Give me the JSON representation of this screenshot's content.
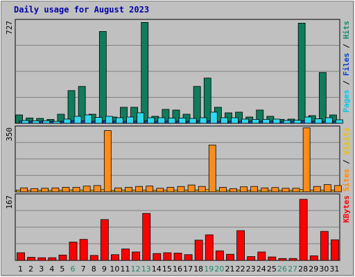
{
  "chart_data": {
    "type": "bar",
    "title": "Daily usage for August 2023",
    "categories": [
      "1",
      "2",
      "3",
      "4",
      "5",
      "6",
      "7",
      "8",
      "9",
      "10",
      "11",
      "12",
      "13",
      "14",
      "15",
      "16",
      "17",
      "18",
      "19",
      "20",
      "21",
      "22",
      "23",
      "24",
      "25",
      "26",
      "27",
      "28",
      "29",
      "30",
      "31"
    ],
    "weekend_days": [
      "6",
      "12",
      "13",
      "19",
      "20",
      "26",
      "27"
    ],
    "grid": true,
    "panels": [
      {
        "id": "hits_files_pages",
        "ymax_label": "727",
        "ymax": 727,
        "right_label": [
          {
            "text": "Pages",
            "color": "#00c8e8"
          },
          {
            "text": " / ",
            "color": "#000000"
          },
          {
            "text": "Files",
            "color": "#0044cc"
          },
          {
            "text": " / ",
            "color": "#000000"
          },
          {
            "text": "Hits",
            "color": "#1a8a6e"
          }
        ],
        "series": [
          {
            "name": "Hits",
            "color": "#107c5c",
            "values": [
              60,
              38,
              35,
              28,
              65,
              235,
              265,
              65,
              660,
              45,
              115,
              115,
              725,
              50,
              100,
              95,
              65,
              265,
              325,
              115,
              75,
              80,
              45,
              95,
              50,
              28,
              30,
              720,
              55,
              365,
              60
            ]
          },
          {
            "name": "Files",
            "color": "#1050d0",
            "values": [
              15,
              15,
              15,
              15,
              15,
              18,
              18,
              15,
              18,
              15,
              15,
              15,
              18,
              15,
              15,
              15,
              15,
              18,
              18,
              15,
              15,
              15,
              15,
              15,
              15,
              15,
              15,
              18,
              15,
              15,
              15
            ]
          },
          {
            "name": "Pages",
            "color": "#30d8f0",
            "values": [
              20,
              18,
              18,
              14,
              30,
              50,
              60,
              42,
              50,
              40,
              45,
              75,
              40,
              40,
              38,
              38,
              35,
              40,
              80,
              40,
              40,
              30,
              28,
              28,
              30,
              20,
              22,
              45,
              32,
              40,
              25
            ]
          }
        ]
      },
      {
        "id": "visits_sites",
        "ymax_label": "350",
        "ymax": 350,
        "right_label": [
          {
            "text": "Sites",
            "color": "#ff8c00"
          },
          {
            "text": " / ",
            "color": "#000000"
          },
          {
            "text": "Visits",
            "color": "#f0c000"
          }
        ],
        "series": [
          {
            "name": "Visits",
            "color": "#ffc800",
            "values": [
              10,
              8,
              8,
              8,
              8,
              10,
              10,
              10,
              12,
              8,
              10,
              10,
              10,
              8,
              10,
              10,
              10,
              10,
              12,
              8,
              8,
              10,
              8,
              8,
              8,
              8,
              8,
              12,
              10,
              10,
              10
            ]
          },
          {
            "name": "Sites",
            "color": "#ff8c1a",
            "values": [
              22,
              18,
              20,
              22,
              25,
              25,
              32,
              35,
              340,
              22,
              25,
              30,
              32,
              20,
              25,
              30,
              38,
              30,
              260,
              25,
              18,
              28,
              30,
              22,
              24,
              20,
              20,
              355,
              30,
              40,
              35
            ]
          }
        ]
      },
      {
        "id": "kbytes",
        "ymax_label": "167",
        "ymax": 167,
        "right_label": [
          {
            "text": "KBytes",
            "color": "#ff0000"
          }
        ],
        "series": [
          {
            "name": "KBytes",
            "color": "#ff0000",
            "values": [
              20,
              8,
              7,
              7,
              14,
              48,
              55,
              13,
              107,
              15,
              30,
              22,
              123,
              18,
              20,
              19,
              15,
              53,
              67,
              25,
              16,
              78,
              10,
              22,
              9,
              5,
              5,
              160,
              12,
              76,
              54
            ]
          }
        ]
      }
    ]
  }
}
